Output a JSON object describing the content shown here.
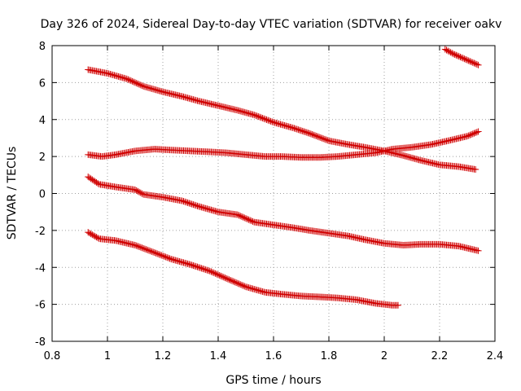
{
  "chart_data": {
    "type": "scatter",
    "title": "Day 326 of 2024, Sidereal Day-to-day VTEC variation (SDTVAR) for receiver oakv",
    "xlabel": "GPS time / hours",
    "ylabel": "SDTVAR / TECUs",
    "xlim": [
      0.8,
      2.4
    ],
    "ylim": [
      -8,
      8
    ],
    "xticks": [
      "0.8",
      "1",
      "1.2",
      "1.4",
      "1.6",
      "1.8",
      "2",
      "2.2",
      "2.4"
    ],
    "yticks": [
      "-8",
      "-6",
      "-4",
      "-2",
      "0",
      "2",
      "4",
      "6",
      "8"
    ],
    "grid": true,
    "marker": "+",
    "marker_color": "#d00000",
    "series": [
      {
        "name": "series-1",
        "x": [
          0.93,
          1.0,
          1.07,
          1.13,
          1.2,
          1.27,
          1.33,
          1.4,
          1.47,
          1.53,
          1.6,
          1.67,
          1.73,
          1.8,
          1.87,
          1.93,
          2.0,
          2.07,
          2.13,
          2.2,
          2.27,
          2.33
        ],
        "y": [
          6.7,
          6.5,
          6.2,
          5.8,
          5.5,
          5.25,
          5.0,
          4.75,
          4.5,
          4.25,
          3.85,
          3.55,
          3.25,
          2.85,
          2.65,
          2.5,
          2.3,
          2.05,
          1.8,
          1.55,
          1.45,
          1.3
        ]
      },
      {
        "name": "series-2",
        "x": [
          0.93,
          0.98,
          1.03,
          1.1,
          1.17,
          1.23,
          1.3,
          1.37,
          1.43,
          1.5,
          1.57,
          1.63,
          1.7,
          1.77,
          1.83,
          1.9,
          1.97,
          2.03,
          2.1,
          2.17,
          2.23,
          2.3,
          2.34
        ],
        "y": [
          2.1,
          2.0,
          2.1,
          2.3,
          2.4,
          2.35,
          2.3,
          2.25,
          2.2,
          2.1,
          2.0,
          2.0,
          1.95,
          1.95,
          2.0,
          2.1,
          2.2,
          2.4,
          2.5,
          2.65,
          2.85,
          3.1,
          3.35
        ]
      },
      {
        "name": "series-3",
        "x": [
          0.93,
          0.97,
          1.03,
          1.1,
          1.13,
          1.2,
          1.27,
          1.33,
          1.4,
          1.47,
          1.53,
          1.6,
          1.67,
          1.73,
          1.8,
          1.87,
          1.93,
          2.0,
          2.07,
          2.13,
          2.2,
          2.27,
          2.34
        ],
        "y": [
          0.9,
          0.5,
          0.35,
          0.2,
          -0.05,
          -0.2,
          -0.4,
          -0.7,
          -1.0,
          -1.15,
          -1.55,
          -1.7,
          -1.85,
          -2.0,
          -2.15,
          -2.3,
          -2.5,
          -2.7,
          -2.8,
          -2.75,
          -2.75,
          -2.85,
          -3.1
        ]
      },
      {
        "name": "series-4",
        "x": [
          0.93,
          0.97,
          1.03,
          1.1,
          1.17,
          1.23,
          1.3,
          1.37,
          1.43,
          1.5,
          1.57,
          1.63,
          1.7,
          1.77,
          1.83,
          1.9,
          1.97,
          2.03,
          2.05
        ],
        "y": [
          -2.1,
          -2.45,
          -2.55,
          -2.8,
          -3.2,
          -3.55,
          -3.85,
          -4.2,
          -4.6,
          -5.05,
          -5.35,
          -5.45,
          -5.55,
          -5.6,
          -5.65,
          -5.75,
          -5.95,
          -6.05,
          -6.05
        ]
      },
      {
        "name": "series-5",
        "x": [
          2.22,
          2.25,
          2.28,
          2.31,
          2.34
        ],
        "y": [
          7.8,
          7.55,
          7.35,
          7.15,
          6.95
        ]
      }
    ]
  }
}
